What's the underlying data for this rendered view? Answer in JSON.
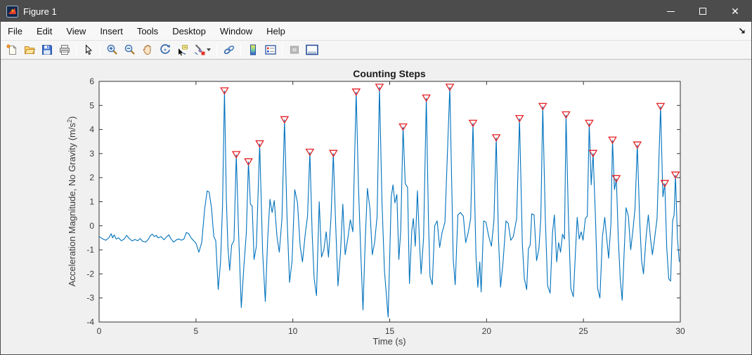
{
  "window": {
    "title": "Figure 1",
    "controls": {
      "minimize": "minimize",
      "maximize": "maximize",
      "close": "close"
    },
    "titlebar_color": "#4C4C4C"
  },
  "menu": {
    "items": [
      "File",
      "Edit",
      "View",
      "Insert",
      "Tools",
      "Desktop",
      "Window",
      "Help"
    ]
  },
  "toolbar": {
    "buttons": [
      "new-figure",
      "open-file",
      "save-figure",
      "print-figure",
      "edit-plot-pointer",
      "zoom-in",
      "zoom-out",
      "pan",
      "rotate-3d",
      "data-cursor",
      "brush-data",
      "link-plot",
      "insert-colorbar",
      "insert-legend",
      "hide-plot-tools",
      "show-plot-tools-dock"
    ]
  },
  "chart_data": {
    "type": "line",
    "title": "Counting Steps",
    "xlabel": "Time (s)",
    "ylabel_parts": {
      "pre": "Acceleration Magnitude, No Gravity (m/s",
      "sup": "2",
      "post": ")"
    },
    "xlim": [
      0,
      30
    ],
    "ylim": [
      -4,
      6
    ],
    "xticks": [
      0,
      5,
      10,
      15,
      20,
      25,
      30
    ],
    "yticks": [
      -4,
      -3,
      -2,
      -1,
      0,
      1,
      2,
      3,
      4,
      5,
      6
    ],
    "grid": false,
    "line_color": "#0072BD",
    "marker_color": "#E32227",
    "axes_color": "#333333",
    "series": [
      {
        "name": "acceleration-magnitude",
        "points": [
          [
            0,
            -0.45
          ],
          [
            0.2,
            -0.55
          ],
          [
            0.35,
            -0.6
          ],
          [
            0.5,
            -0.5
          ],
          [
            0.62,
            -0.33
          ],
          [
            0.7,
            -0.5
          ],
          [
            0.78,
            -0.38
          ],
          [
            0.88,
            -0.55
          ],
          [
            1.0,
            -0.5
          ],
          [
            1.15,
            -0.62
          ],
          [
            1.3,
            -0.55
          ],
          [
            1.42,
            -0.4
          ],
          [
            1.55,
            -0.52
          ],
          [
            1.7,
            -0.63
          ],
          [
            1.85,
            -0.57
          ],
          [
            2.0,
            -0.62
          ],
          [
            2.12,
            -0.53
          ],
          [
            2.25,
            -0.65
          ],
          [
            2.4,
            -0.68
          ],
          [
            2.55,
            -0.55
          ],
          [
            2.65,
            -0.4
          ],
          [
            2.75,
            -0.35
          ],
          [
            2.85,
            -0.45
          ],
          [
            2.95,
            -0.4
          ],
          [
            3.05,
            -0.5
          ],
          [
            3.2,
            -0.45
          ],
          [
            3.35,
            -0.58
          ],
          [
            3.5,
            -0.45
          ],
          [
            3.6,
            -0.38
          ],
          [
            3.72,
            -0.55
          ],
          [
            3.85,
            -0.68
          ],
          [
            4.0,
            -0.58
          ],
          [
            4.12,
            -0.55
          ],
          [
            4.25,
            -0.6
          ],
          [
            4.38,
            -0.55
          ],
          [
            4.5,
            -0.28
          ],
          [
            4.62,
            -0.32
          ],
          [
            4.75,
            -0.5
          ],
          [
            4.88,
            -0.62
          ],
          [
            5.0,
            -0.72
          ],
          [
            5.15,
            -1.1
          ],
          [
            5.3,
            -0.68
          ],
          [
            5.45,
            0.7
          ],
          [
            5.58,
            1.45
          ],
          [
            5.68,
            1.4
          ],
          [
            5.8,
            0.75
          ],
          [
            5.92,
            -0.45
          ],
          [
            6.02,
            -0.62
          ],
          [
            6.15,
            -2.65
          ],
          [
            6.27,
            -1.5
          ],
          [
            6.37,
            0.8
          ],
          [
            6.47,
            5.6
          ],
          [
            6.57,
            1.1
          ],
          [
            6.65,
            -0.9
          ],
          [
            6.74,
            -1.85
          ],
          [
            6.84,
            -0.8
          ],
          [
            6.96,
            -0.62
          ],
          [
            7.08,
            2.95
          ],
          [
            7.2,
            -0.3
          ],
          [
            7.34,
            -3.4
          ],
          [
            7.48,
            -1.6
          ],
          [
            7.6,
            -0.3
          ],
          [
            7.71,
            2.65
          ],
          [
            7.81,
            0.9
          ],
          [
            7.9,
            0.82
          ],
          [
            8.0,
            -1.4
          ],
          [
            8.12,
            -0.85
          ],
          [
            8.29,
            3.4
          ],
          [
            8.44,
            -1.1
          ],
          [
            8.58,
            -3.15
          ],
          [
            8.7,
            -0.6
          ],
          [
            8.82,
            1.1
          ],
          [
            8.93,
            0.55
          ],
          [
            9.04,
            1.05
          ],
          [
            9.18,
            -0.45
          ],
          [
            9.3,
            -1.1
          ],
          [
            9.44,
            0.3
          ],
          [
            9.57,
            4.4
          ],
          [
            9.7,
            0.35
          ],
          [
            9.83,
            -2.35
          ],
          [
            9.96,
            -1.45
          ],
          [
            10.1,
            1.5
          ],
          [
            10.24,
            0.95
          ],
          [
            10.38,
            -0.85
          ],
          [
            10.5,
            -1.5
          ],
          [
            10.64,
            -0.35
          ],
          [
            10.76,
            0.4
          ],
          [
            10.88,
            3.05
          ],
          [
            11.0,
            -0.35
          ],
          [
            11.1,
            -2.2
          ],
          [
            11.22,
            -2.9
          ],
          [
            11.36,
            1.0
          ],
          [
            11.48,
            -1.3
          ],
          [
            11.6,
            -1.0
          ],
          [
            11.72,
            -0.25
          ],
          [
            11.84,
            -1.3
          ],
          [
            11.97,
            0.35
          ],
          [
            12.09,
            3.0
          ],
          [
            12.2,
            0.3
          ],
          [
            12.33,
            -2.5
          ],
          [
            12.46,
            -1.1
          ],
          [
            12.58,
            0.9
          ],
          [
            12.7,
            -1.2
          ],
          [
            12.84,
            -0.5
          ],
          [
            12.97,
            0.25
          ],
          [
            13.1,
            -0.25
          ],
          [
            13.27,
            5.55
          ],
          [
            13.39,
            1.6
          ],
          [
            13.5,
            -1.0
          ],
          [
            13.62,
            -3.5
          ],
          [
            13.74,
            -0.5
          ],
          [
            13.85,
            1.55
          ],
          [
            13.98,
            0.7
          ],
          [
            14.1,
            -1.2
          ],
          [
            14.22,
            -0.7
          ],
          [
            14.35,
            0.4
          ],
          [
            14.47,
            5.75
          ],
          [
            14.6,
            1.0
          ],
          [
            14.73,
            -1.9
          ],
          [
            14.92,
            -3.8
          ],
          [
            15.08,
            1.2
          ],
          [
            15.17,
            1.7
          ],
          [
            15.27,
            0.95
          ],
          [
            15.37,
            1.3
          ],
          [
            15.47,
            -1.4
          ],
          [
            15.57,
            -0.2
          ],
          [
            15.69,
            4.1
          ],
          [
            15.8,
            1.75
          ],
          [
            15.92,
            1.6
          ],
          [
            16.02,
            -2.4
          ],
          [
            16.14,
            -0.2
          ],
          [
            16.22,
            0.3
          ],
          [
            16.32,
            -0.85
          ],
          [
            16.43,
            1.45
          ],
          [
            16.55,
            -0.9
          ],
          [
            16.62,
            -2.0
          ],
          [
            16.75,
            -0.5
          ],
          [
            16.89,
            5.3
          ],
          [
            17.0,
            0.3
          ],
          [
            17.08,
            -2.1
          ],
          [
            17.2,
            -2.45
          ],
          [
            17.32,
            0.0
          ],
          [
            17.45,
            0.2
          ],
          [
            17.58,
            -0.9
          ],
          [
            17.7,
            -0.3
          ],
          [
            17.85,
            0.15
          ],
          [
            18.1,
            5.75
          ],
          [
            18.28,
            -1.4
          ],
          [
            18.38,
            -2.45
          ],
          [
            18.52,
            0.45
          ],
          [
            18.65,
            0.55
          ],
          [
            18.8,
            0.4
          ],
          [
            18.92,
            -0.7
          ],
          [
            19.05,
            -0.3
          ],
          [
            19.18,
            0.3
          ],
          [
            19.3,
            4.25
          ],
          [
            19.45,
            -1.2
          ],
          [
            19.55,
            -2.55
          ],
          [
            19.65,
            -1.5
          ],
          [
            19.72,
            -2.75
          ],
          [
            19.85,
            0.2
          ],
          [
            19.97,
            0.15
          ],
          [
            20.1,
            -0.4
          ],
          [
            20.25,
            -0.85
          ],
          [
            20.38,
            0.2
          ],
          [
            20.5,
            3.65
          ],
          [
            20.62,
            -0.6
          ],
          [
            20.72,
            -2.55
          ],
          [
            20.85,
            -1.5
          ],
          [
            21.0,
            0.2
          ],
          [
            21.12,
            0.1
          ],
          [
            21.25,
            -0.6
          ],
          [
            21.38,
            -0.45
          ],
          [
            21.55,
            0.3
          ],
          [
            21.7,
            4.45
          ],
          [
            21.85,
            -0.8
          ],
          [
            21.95,
            -2.2
          ],
          [
            22.07,
            -2.65
          ],
          [
            22.16,
            -0.95
          ],
          [
            22.25,
            -0.8
          ],
          [
            22.33,
            0.5
          ],
          [
            22.45,
            0.45
          ],
          [
            22.58,
            -1.45
          ],
          [
            22.7,
            -0.95
          ],
          [
            22.8,
            0.3
          ],
          [
            22.9,
            4.95
          ],
          [
            23.03,
            0.3
          ],
          [
            23.15,
            -2.5
          ],
          [
            23.28,
            -2.8
          ],
          [
            23.4,
            -0.3
          ],
          [
            23.5,
            0.45
          ],
          [
            23.62,
            -1.5
          ],
          [
            23.72,
            -0.7
          ],
          [
            23.82,
            -1.1
          ],
          [
            23.92,
            -0.35
          ],
          [
            24.02,
            -0.55
          ],
          [
            24.1,
            4.6
          ],
          [
            24.22,
            0.4
          ],
          [
            24.35,
            -2.6
          ],
          [
            24.48,
            -2.95
          ],
          [
            24.58,
            -1.2
          ],
          [
            24.68,
            0.35
          ],
          [
            24.78,
            -0.55
          ],
          [
            24.88,
            -0.25
          ],
          [
            24.98,
            -0.6
          ],
          [
            25.1,
            0.3
          ],
          [
            25.2,
            0.4
          ],
          [
            25.3,
            4.25
          ],
          [
            25.4,
            1.7
          ],
          [
            25.5,
            3.0
          ],
          [
            25.62,
            0.3
          ],
          [
            25.73,
            -2.6
          ],
          [
            25.85,
            -3.0
          ],
          [
            25.98,
            -0.45
          ],
          [
            26.1,
            0.35
          ],
          [
            26.2,
            -0.5
          ],
          [
            26.3,
            -1.35
          ],
          [
            26.42,
            0.1
          ],
          [
            26.5,
            3.55
          ],
          [
            26.6,
            1.5
          ],
          [
            26.7,
            1.95
          ],
          [
            26.8,
            -0.55
          ],
          [
            26.9,
            -2.2
          ],
          [
            27.0,
            -3.1
          ],
          [
            27.1,
            -1.1
          ],
          [
            27.2,
            0.75
          ],
          [
            27.32,
            0.4
          ],
          [
            27.44,
            -1.0
          ],
          [
            27.55,
            -0.2
          ],
          [
            27.66,
            0.7
          ],
          [
            27.78,
            3.35
          ],
          [
            27.9,
            0.3
          ],
          [
            28.0,
            -1.45
          ],
          [
            28.1,
            -2.0
          ],
          [
            28.24,
            -0.4
          ],
          [
            28.35,
            0.45
          ],
          [
            28.46,
            -0.5
          ],
          [
            28.56,
            -1.2
          ],
          [
            28.66,
            -0.6
          ],
          [
            28.8,
            0.3
          ],
          [
            28.98,
            4.95
          ],
          [
            29.1,
            1.2
          ],
          [
            29.2,
            1.75
          ],
          [
            29.3,
            -0.9
          ],
          [
            29.4,
            -2.2
          ],
          [
            29.5,
            -2.3
          ],
          [
            29.6,
            0.2
          ],
          [
            29.68,
            0.45
          ],
          [
            29.75,
            2.1
          ],
          [
            29.85,
            -0.5
          ],
          [
            29.95,
            -1.5
          ]
        ]
      }
    ],
    "peaks": [
      [
        6.47,
        5.6
      ],
      [
        7.08,
        2.95
      ],
      [
        7.71,
        2.65
      ],
      [
        8.29,
        3.4
      ],
      [
        9.57,
        4.4
      ],
      [
        10.88,
        3.05
      ],
      [
        12.09,
        3.0
      ],
      [
        13.27,
        5.55
      ],
      [
        14.47,
        5.75
      ],
      [
        15.69,
        4.1
      ],
      [
        16.89,
        5.3
      ],
      [
        18.1,
        5.75
      ],
      [
        19.3,
        4.25
      ],
      [
        20.5,
        3.65
      ],
      [
        21.7,
        4.45
      ],
      [
        22.9,
        4.95
      ],
      [
        24.1,
        4.6
      ],
      [
        25.3,
        4.25
      ],
      [
        25.5,
        3.0
      ],
      [
        26.5,
        3.55
      ],
      [
        26.7,
        1.95
      ],
      [
        27.78,
        3.35
      ],
      [
        28.98,
        4.95
      ],
      [
        29.2,
        1.75
      ],
      [
        29.75,
        2.1
      ]
    ]
  }
}
